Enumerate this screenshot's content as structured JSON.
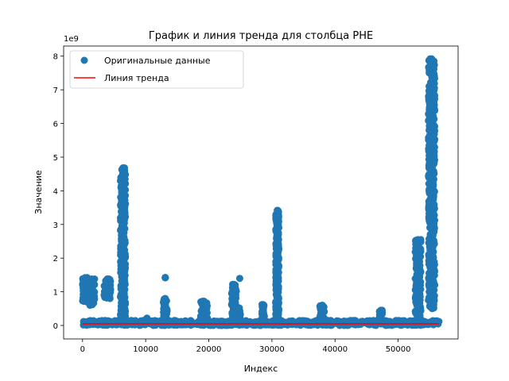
{
  "chart_data": {
    "type": "scatter",
    "title": "График и линия тренда для столбца PHE",
    "xlabel": "Индекс",
    "ylabel": "Значение",
    "y_offset_label": "1e9",
    "xlim": [
      -3000,
      59500
    ],
    "ylim": [
      -0.4,
      8.3
    ],
    "x_ticks": [
      0,
      10000,
      20000,
      30000,
      40000,
      50000
    ],
    "x_tick_labels": [
      "0",
      "10000",
      "20000",
      "30000",
      "40000",
      "50000"
    ],
    "y_ticks": [
      0,
      1,
      2,
      3,
      4,
      5,
      6,
      7,
      8
    ],
    "y_tick_labels": [
      "0",
      "1",
      "2",
      "3",
      "4",
      "5",
      "6",
      "7",
      "8"
    ],
    "grid": false,
    "legend_position": "top-left",
    "colors": {
      "points": "#1f77b4",
      "trend": "#ff0000"
    },
    "series": [
      {
        "name": "Оригинальные данные",
        "kind": "points",
        "clusters": [
          {
            "x": [
              0,
              800
            ],
            "y": [
              0.7,
              1.42
            ]
          },
          {
            "x": [
              1000,
              1900
            ],
            "y": [
              0.6,
              1.38
            ]
          },
          {
            "x": [
              3400,
              4500
            ],
            "y": [
              0.8,
              1.38
            ]
          },
          {
            "x": [
              6000,
              6800
            ],
            "y": [
              0.1,
              4.68
            ]
          },
          {
            "x": [
              12800,
              13400
            ],
            "y": [
              0.05,
              0.8
            ]
          },
          {
            "x": [
              13100,
              13100
            ],
            "y": [
              1.42,
              1.42
            ]
          },
          {
            "x": [
              18700,
              19800
            ],
            "y": [
              0.05,
              0.72
            ]
          },
          {
            "x": [
              23600,
              24400
            ],
            "y": [
              0.05,
              1.22
            ]
          },
          {
            "x": [
              24700,
              25000
            ],
            "y": [
              0.05,
              0.52
            ]
          },
          {
            "x": [
              28400,
              28800
            ],
            "y": [
              0.05,
              0.62
            ]
          },
          {
            "x": [
              30600,
              31100
            ],
            "y": [
              0.05,
              3.42
            ]
          },
          {
            "x": [
              37600,
              38300
            ],
            "y": [
              0.05,
              0.6
            ]
          },
          {
            "x": [
              47000,
              47500
            ],
            "y": [
              0.05,
              0.45
            ]
          },
          {
            "x": [
              52700,
              53600
            ],
            "y": [
              0.1,
              2.55
            ]
          },
          {
            "x": [
              54800,
              55800
            ],
            "y": [
              0.5,
              7.92
            ]
          }
        ],
        "isolated_points": [
          {
            "x": 24900,
            "y": 1.4
          },
          {
            "x": 10200,
            "y": 0.22
          },
          {
            "x": 3900,
            "y": 1.38
          },
          {
            "x": 7700,
            "y": 0.15
          }
        ],
        "baseline": {
          "x": [
            0,
            56500
          ],
          "y": [
            0,
            0.15
          ]
        }
      },
      {
        "name": "Линия тренда",
        "kind": "line",
        "x": [
          0,
          56500
        ],
        "y": [
          0.05,
          0.05
        ]
      }
    ]
  }
}
